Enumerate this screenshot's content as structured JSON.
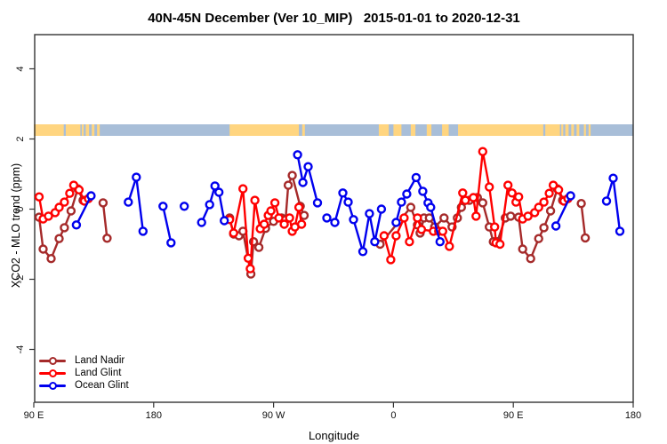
{
  "title": "40N-45N December (Ver 10_MIP)   2015-01-01 to 2020-12-31",
  "axes": {
    "x": {
      "label": "Longitude",
      "ticks": [
        {
          "pos": 90,
          "label": "90 E"
        },
        {
          "pos": 180,
          "label": "180"
        },
        {
          "pos": 270,
          "label": "90 W"
        },
        {
          "pos": 360,
          "label": "0"
        },
        {
          "pos": 450,
          "label": "90 E"
        },
        {
          "pos": 540,
          "label": "180"
        }
      ]
    },
    "y": {
      "label": "XCO2 - MLO trend (ppm)",
      "ticks": [
        {
          "pos": -4,
          "label": "-4"
        },
        {
          "pos": -2,
          "label": "-2"
        },
        {
          "pos": 0,
          "label": "0"
        },
        {
          "pos": 2,
          "label": "2"
        },
        {
          "pos": 4,
          "label": "4"
        }
      ]
    }
  },
  "legend": [
    {
      "label": "Land Nadir",
      "color": "#A52A2A"
    },
    {
      "label": "Land Glint",
      "color": "#FF0000"
    },
    {
      "label": "Ocean Glint",
      "color": "#0000EE"
    }
  ],
  "map_band": {
    "ocean_color": "#A8BED8",
    "land_color": "#FFD580",
    "extent": [
      90,
      540
    ],
    "land_segments": [
      [
        90,
        112.5
      ],
      [
        114,
        125
      ],
      [
        126,
        127.5
      ],
      [
        129,
        131.5
      ],
      [
        133.5,
        135.5
      ],
      [
        137.5,
        139.5
      ],
      [
        237,
        289
      ],
      [
        291.5,
        293.5
      ],
      [
        349,
        356.5
      ],
      [
        360,
        366
      ],
      [
        373,
        376.5
      ],
      [
        385,
        388.5
      ],
      [
        396.5,
        401.5
      ],
      [
        408.5,
        472.5
      ],
      [
        474,
        485
      ],
      [
        486,
        487.5
      ],
      [
        489,
        491.5
      ],
      [
        493.5,
        495.5
      ],
      [
        497.5,
        499.5
      ],
      [
        503,
        504.5
      ],
      [
        506.5,
        508
      ]
    ]
  },
  "chart_data": {
    "type": "line",
    "title": "40N-45N December (Ver 10_MIP)   2015-01-01 to 2020-12-31",
    "xlabel": "Longitude",
    "ylabel": "XCO2 - MLO trend (ppm)",
    "xlim": [
      90,
      540
    ],
    "ylim": [
      -5,
      5
    ],
    "grid": false,
    "legend_position": "bottom-left",
    "x_units": "degrees east, unwrapped 90E to 180 around globe",
    "series": [
      {
        "name": "Land Nadir",
        "color": "#A52A2A",
        "segments": [
          [
            [
              94,
              -0.23
            ],
            [
              97,
              -1.14
            ],
            [
              103,
              -1.41
            ],
            [
              109,
              -0.84
            ],
            [
              113,
              -0.53
            ],
            [
              118,
              -0.05
            ],
            [
              123,
              0.58
            ],
            [
              127,
              0.25
            ]
          ],
          [
            [
              142,
              0.18
            ],
            [
              145,
              -0.83
            ]
          ],
          [
            [
              237,
              -0.25
            ],
            [
              240,
              -0.71
            ],
            [
              244,
              -0.76
            ],
            [
              247,
              -0.63
            ],
            [
              253,
              -1.85
            ],
            [
              255,
              -0.93
            ],
            [
              259,
              -1.09
            ],
            [
              264,
              -0.55
            ],
            [
              270,
              -0.35
            ],
            [
              276,
              -0.25
            ],
            [
              279,
              -0.3
            ],
            [
              281,
              0.68
            ],
            [
              284,
              0.96
            ],
            [
              290,
              0.08
            ],
            [
              293,
              -0.18
            ]
          ],
          [
            [
              350,
              -1.0
            ],
            [
              373,
              0.05
            ],
            [
              378,
              -0.45
            ],
            [
              380,
              -0.68
            ],
            [
              383,
              -0.25
            ],
            [
              387,
              -0.25
            ],
            [
              391,
              -0.51
            ],
            [
              398,
              -0.25
            ],
            [
              404,
              -0.51
            ],
            [
              408,
              -0.25
            ],
            [
              411,
              0.05
            ],
            [
              417,
              0.25
            ],
            [
              423,
              0.33
            ],
            [
              427,
              0.18
            ],
            [
              432,
              -0.51
            ],
            [
              435,
              -0.93
            ],
            [
              438,
              -0.93
            ],
            [
              444,
              -0.25
            ],
            [
              448,
              -0.2
            ]
          ],
          [
            [
              454,
              -0.23
            ],
            [
              457,
              -1.14
            ],
            [
              463,
              -1.41
            ],
            [
              469,
              -0.84
            ],
            [
              473,
              -0.53
            ],
            [
              478,
              -0.05
            ],
            [
              483,
              0.58
            ],
            [
              487,
              0.25
            ]
          ],
          [
            [
              501,
              0.16
            ],
            [
              504,
              -0.82
            ]
          ]
        ]
      },
      {
        "name": "Land Glint",
        "color": "#FF0000",
        "segments": [
          [
            [
              94,
              0.35
            ],
            [
              97,
              -0.28
            ],
            [
              101,
              -0.2
            ],
            [
              106,
              -0.1
            ],
            [
              109,
              0.05
            ],
            [
              113,
              0.2
            ],
            [
              117,
              0.45
            ],
            [
              120,
              0.68
            ],
            [
              124,
              0.55
            ],
            [
              128,
              0.23
            ],
            [
              131,
              0.3
            ]
          ],
          [
            [
              237,
              -0.3
            ],
            [
              240,
              -0.68
            ],
            [
              247,
              0.58
            ],
            [
              251,
              -1.4
            ],
            [
              252.5,
              -1.7
            ],
            [
              256,
              0.25
            ],
            [
              260,
              -0.56
            ],
            [
              263,
              -0.43
            ],
            [
              266,
              -0.18
            ],
            [
              268,
              -0.05
            ],
            [
              271,
              0.18
            ],
            [
              274,
              -0.25
            ],
            [
              278,
              -0.43
            ],
            [
              282,
              -0.25
            ],
            [
              284,
              -0.63
            ],
            [
              286,
              -0.51
            ],
            [
              289,
              0.05
            ],
            [
              291,
              -0.43
            ]
          ],
          [
            [
              353,
              -0.76
            ],
            [
              358,
              -1.44
            ],
            [
              362,
              -0.76
            ],
            [
              368,
              -0.25
            ],
            [
              372,
              -0.93
            ],
            [
              378,
              -0.25
            ],
            [
              381,
              -0.58
            ],
            [
              390,
              -0.63
            ],
            [
              394,
              -0.63
            ],
            [
              397,
              -0.63
            ],
            [
              402,
              -1.06
            ],
            [
              412,
              0.46
            ],
            [
              414,
              0.25
            ],
            [
              420,
              0.33
            ],
            [
              422,
              -0.2
            ],
            [
              427,
              1.64
            ],
            [
              432,
              0.63
            ],
            [
              436,
              -0.51
            ],
            [
              437,
              -0.96
            ],
            [
              440,
              -1.0
            ],
            [
              446,
              0.68
            ],
            [
              449,
              0.46
            ],
            [
              452,
              0.2
            ],
            [
              454,
              0.35
            ],
            [
              457,
              -0.28
            ],
            [
              461,
              -0.2
            ],
            [
              466,
              -0.1
            ],
            [
              469,
              0.05
            ],
            [
              473,
              0.2
            ],
            [
              477,
              0.45
            ],
            [
              480,
              0.68
            ],
            [
              484,
              0.55
            ],
            [
              488,
              0.23
            ],
            [
              491,
              0.3
            ]
          ]
        ]
      },
      {
        "name": "Ocean Glint",
        "color": "#0000EE",
        "segments": [
          [
            [
              122,
              -0.45
            ],
            [
              133,
              0.38
            ]
          ],
          [
            [
              161,
              0.2
            ],
            [
              167,
              0.91
            ],
            [
              172,
              -0.63
            ]
          ],
          [
            [
              187,
              0.08
            ],
            [
              193,
              -0.96
            ]
          ],
          [
            [
              203,
              0.08
            ]
          ],
          [
            [
              216,
              -0.38
            ],
            [
              222,
              0.13
            ],
            [
              226,
              0.66
            ],
            [
              229,
              0.48
            ],
            [
              233,
              -0.33
            ]
          ],
          [
            [
              288,
              1.55
            ],
            [
              292,
              0.76
            ],
            [
              296,
              1.21
            ],
            [
              303,
              0.18
            ]
          ],
          [
            [
              310,
              -0.25
            ],
            [
              316,
              -0.38
            ],
            [
              322,
              0.46
            ],
            [
              326,
              0.2
            ],
            [
              330,
              -0.3
            ],
            [
              337,
              -1.21
            ],
            [
              342,
              -0.13
            ],
            [
              346,
              -0.93
            ],
            [
              351,
              0.0
            ]
          ],
          [
            [
              362,
              -0.38
            ],
            [
              366,
              0.2
            ],
            [
              370,
              0.43
            ],
            [
              377,
              0.9
            ],
            [
              382,
              0.51
            ],
            [
              386,
              0.18
            ],
            [
              388,
              0.05
            ],
            [
              395,
              -0.93
            ]
          ],
          [
            [
              482,
              -0.48
            ],
            [
              493,
              0.38
            ]
          ],
          [
            [
              520,
              0.23
            ],
            [
              525,
              0.88
            ],
            [
              530,
              -0.63
            ]
          ]
        ]
      }
    ]
  }
}
